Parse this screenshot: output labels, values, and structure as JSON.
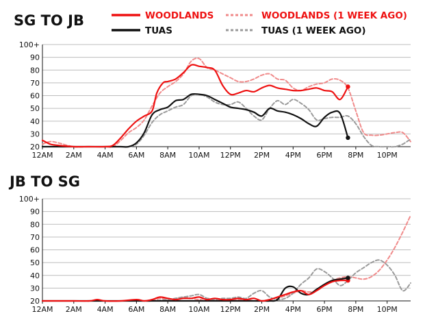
{
  "colors": {
    "woodlands": "#ee1111",
    "woodlands_prev": "#f08a8a",
    "tuas": "#111111",
    "tuas_prev": "#9a9a9a",
    "grid": "#bdbdbd"
  },
  "legend": [
    {
      "key": "woodlands",
      "label": "WOODLANDS",
      "style": "solid"
    },
    {
      "key": "woodlands_prev",
      "label": "WOODLANDS (1 WEEK AGO)",
      "style": "dashed"
    },
    {
      "key": "tuas",
      "label": "TUAS",
      "style": "solid"
    },
    {
      "key": "tuas_prev",
      "label": "TUAS (1 WEEK AGO)",
      "style": "dashed"
    }
  ],
  "chart_data": [
    {
      "type": "line",
      "title": "SG TO JB",
      "xlabel": "",
      "ylabel": "",
      "x_unit": "hours since midnight",
      "xlim": [
        0,
        23.5
      ],
      "ylim": [
        20,
        100
      ],
      "y_ticks": [
        20,
        30,
        40,
        50,
        60,
        70,
        80,
        90,
        100
      ],
      "y_tick_labels": [
        "20",
        "30",
        "40",
        "50",
        "60",
        "70",
        "80",
        "90",
        "100+"
      ],
      "x_ticks": [
        0,
        2,
        4,
        6,
        8,
        10,
        12,
        14,
        16,
        18,
        20,
        22
      ],
      "x_tick_labels": [
        "12AM",
        "2AM",
        "4AM",
        "6AM",
        "8AM",
        "10AM",
        "12PM",
        "2PM",
        "4PM",
        "6PM",
        "8PM",
        "10PM"
      ],
      "grid": true,
      "series": [
        {
          "name": "WOODLANDS",
          "key": "woodlands",
          "x": [
            0,
            0.5,
            1,
            2,
            3,
            4,
            4.5,
            5,
            5.5,
            6,
            6.5,
            7,
            7.3,
            7.7,
            8,
            8.5,
            9,
            9.5,
            10,
            10.5,
            11,
            11.5,
            12,
            12.5,
            13,
            13.5,
            14,
            14.5,
            15,
            15.5,
            16,
            16.5,
            17,
            17.5,
            18,
            18.5,
            19,
            19.5
          ],
          "values": [
            25,
            22,
            21,
            20,
            20,
            20,
            21,
            27,
            34,
            40,
            44,
            48,
            62,
            70,
            71,
            73,
            78,
            84,
            83,
            82,
            80,
            68,
            61,
            62,
            64,
            63,
            66,
            68,
            66,
            65,
            64,
            64,
            65,
            66,
            64,
            63,
            57,
            67
          ]
        },
        {
          "name": "WOODLANDS (1 WEEK AGO)",
          "key": "woodlands_prev",
          "x": [
            0,
            0.5,
            1,
            2,
            3,
            4,
            4.5,
            5,
            5.5,
            6,
            6.5,
            7,
            7.5,
            8,
            8.5,
            9,
            9.5,
            10,
            10.5,
            11,
            11.5,
            12,
            12.5,
            13,
            13.5,
            14,
            14.5,
            15,
            15.5,
            16,
            16.5,
            17,
            17.5,
            18,
            18.5,
            19,
            19.5,
            20,
            20.5,
            21,
            21.5,
            22,
            22.5,
            23,
            23.5
          ],
          "values": [
            22,
            24,
            23,
            20,
            20,
            20,
            20,
            25,
            31,
            35,
            41,
            52,
            62,
            67,
            71,
            77,
            87,
            89,
            82,
            80,
            77,
            74,
            71,
            71,
            73,
            76,
            77,
            73,
            72,
            66,
            64,
            67,
            69,
            70,
            73,
            72,
            66,
            48,
            31,
            29,
            29,
            30,
            31,
            31,
            24
          ]
        },
        {
          "name": "TUAS",
          "key": "tuas",
          "x": [
            0,
            1,
            2,
            3,
            4,
            5,
            5.5,
            6,
            6.5,
            7,
            7.5,
            8,
            8.5,
            9,
            9.5,
            10,
            10.5,
            11,
            11.5,
            12,
            12.5,
            13,
            13.5,
            14,
            14.5,
            15,
            15.5,
            16,
            16.5,
            17,
            17.5,
            18,
            18.5,
            19,
            19.5
          ],
          "values": [
            20,
            20,
            20,
            20,
            20,
            20,
            20,
            23,
            31,
            45,
            49,
            51,
            56,
            57,
            61,
            61,
            60,
            57,
            54,
            51,
            50,
            49,
            47,
            44,
            50,
            48,
            47,
            45,
            42,
            38,
            36,
            43,
            47,
            46,
            27
          ]
        },
        {
          "name": "TUAS (1 WEEK AGO)",
          "key": "tuas_prev",
          "x": [
            0,
            1,
            2,
            3,
            4,
            5,
            5.5,
            6,
            6.5,
            7,
            7.5,
            8,
            8.5,
            9,
            9.5,
            10,
            10.5,
            11,
            11.5,
            12,
            12.5,
            13,
            13.5,
            14,
            14.5,
            15,
            15.5,
            16,
            16.5,
            17,
            17.5,
            18,
            18.5,
            19,
            19.5,
            20,
            20.5,
            21,
            21.5,
            22,
            22.5,
            23,
            23.5
          ],
          "values": [
            20,
            20,
            20,
            20,
            20,
            20,
            20,
            22,
            29,
            39,
            45,
            48,
            51,
            53,
            60,
            61,
            59,
            55,
            53,
            53,
            55,
            50,
            44,
            41,
            50,
            56,
            53,
            57,
            54,
            49,
            41,
            42,
            43,
            43,
            44,
            38,
            28,
            21,
            20,
            20,
            20,
            22,
            26
          ]
        }
      ],
      "end_points": [
        {
          "key": "woodlands",
          "x": 19.5,
          "y": 67
        },
        {
          "key": "tuas",
          "x": 19.5,
          "y": 27
        }
      ]
    },
    {
      "type": "line",
      "title": "JB TO SG",
      "xlabel": "",
      "ylabel": "",
      "x_unit": "hours since midnight",
      "xlim": [
        0,
        23.5
      ],
      "ylim": [
        20,
        100
      ],
      "y_ticks": [
        20,
        30,
        40,
        50,
        60,
        70,
        80,
        90,
        100
      ],
      "y_tick_labels": [
        "20",
        "30",
        "40",
        "50",
        "60",
        "70",
        "80",
        "90",
        "100+"
      ],
      "x_ticks": [
        0,
        2,
        4,
        6,
        8,
        10,
        12,
        14,
        16,
        18,
        20,
        22
      ],
      "x_tick_labels": [
        "12AM",
        "2AM",
        "4AM",
        "6AM",
        "8AM",
        "10AM",
        "12PM",
        "2PM",
        "4PM",
        "6PM",
        "8PM",
        "10PM"
      ],
      "grid": true,
      "series": [
        {
          "name": "WOODLANDS",
          "key": "woodlands",
          "x": [
            0,
            1,
            2,
            3,
            3.5,
            4,
            5,
            6,
            6.5,
            7,
            7.5,
            8,
            8.5,
            9,
            9.5,
            10,
            10.5,
            11,
            11.5,
            12,
            12.5,
            13,
            13.5,
            14,
            14.5,
            15,
            15.5,
            16,
            16.5,
            17,
            17.5,
            18,
            18.5,
            19,
            19.5
          ],
          "values": [
            20,
            20,
            20,
            20,
            21,
            20,
            20,
            21,
            20,
            21,
            23,
            22,
            21,
            22,
            22,
            23,
            21,
            22,
            21,
            21,
            22,
            21,
            22,
            20,
            21,
            23,
            25,
            27,
            28,
            25,
            28,
            32,
            35,
            36,
            36
          ]
        },
        {
          "name": "WOODLANDS (1 WEEK AGO)",
          "key": "woodlands_prev",
          "x": [
            0,
            1,
            2,
            3,
            4,
            5,
            6,
            6.5,
            7,
            7.5,
            8,
            8.5,
            9,
            9.5,
            10,
            10.5,
            11,
            11.5,
            12,
            12.5,
            13,
            13.5,
            14,
            14.5,
            15,
            15.5,
            16,
            16.5,
            17,
            17.5,
            18,
            18.5,
            19,
            19.5,
            20,
            20.5,
            21,
            21.5,
            22,
            22.5,
            23,
            23.5
          ],
          "values": [
            20,
            20,
            20,
            20,
            20,
            20,
            20,
            20,
            20,
            22,
            21,
            22,
            23,
            22,
            21,
            22,
            21,
            21,
            20,
            21,
            21,
            20,
            20,
            21,
            22,
            24,
            26,
            28,
            27,
            28,
            33,
            36,
            38,
            39,
            38,
            37,
            39,
            44,
            52,
            62,
            74,
            87
          ]
        },
        {
          "name": "TUAS",
          "key": "tuas",
          "x": [
            0,
            1,
            2,
            3,
            4,
            5,
            6,
            7,
            8,
            9,
            10,
            11,
            12,
            13,
            14,
            14.5,
            15,
            15.5,
            16,
            16.5,
            17,
            17.5,
            18,
            18.5,
            19,
            19.5
          ],
          "values": [
            20,
            20,
            20,
            20,
            20,
            20,
            20,
            20,
            20,
            20,
            20,
            20,
            20,
            20,
            20,
            20,
            21,
            30,
            31,
            26,
            25,
            29,
            33,
            36,
            37,
            38
          ]
        },
        {
          "name": "TUAS (1 WEEK AGO)",
          "key": "tuas_prev",
          "x": [
            0,
            1,
            2,
            3,
            4,
            5,
            6,
            7,
            8,
            8.5,
            9,
            9.5,
            10,
            10.5,
            11,
            11.5,
            12,
            12.5,
            13,
            13.5,
            14,
            14.5,
            15,
            15.5,
            16,
            16.5,
            17,
            17.5,
            18,
            18.5,
            19,
            19.5,
            20,
            20.5,
            21,
            21.5,
            22,
            22.5,
            23,
            23.5
          ],
          "values": [
            20,
            20,
            20,
            20,
            20,
            20,
            20,
            20,
            21,
            22,
            23,
            24,
            25,
            22,
            21,
            22,
            22,
            23,
            22,
            26,
            28,
            23,
            21,
            22,
            26,
            33,
            38,
            45,
            43,
            38,
            32,
            36,
            42,
            46,
            50,
            52,
            48,
            40,
            28,
            34
          ]
        }
      ],
      "end_points": [
        {
          "key": "woodlands",
          "x": 19.5,
          "y": 36
        },
        {
          "key": "tuas",
          "x": 19.5,
          "y": 38
        }
      ]
    }
  ]
}
